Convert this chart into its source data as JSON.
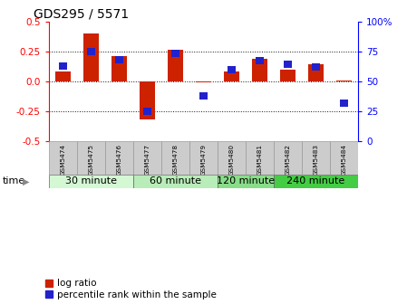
{
  "title": "GDS295 / 5571",
  "samples": [
    "GSM5474",
    "GSM5475",
    "GSM5476",
    "GSM5477",
    "GSM5478",
    "GSM5479",
    "GSM5480",
    "GSM5481",
    "GSM5482",
    "GSM5483",
    "GSM5484"
  ],
  "log_ratio": [
    0.08,
    0.4,
    0.21,
    -0.32,
    0.26,
    -0.01,
    0.08,
    0.19,
    0.1,
    0.14,
    0.01
  ],
  "percentile_rank": [
    63,
    75,
    68,
    25,
    73,
    38,
    60,
    67,
    64,
    62,
    32
  ],
  "ylim": [
    -0.5,
    0.5
  ],
  "yticks_left": [
    -0.5,
    -0.25,
    0.0,
    0.25,
    0.5
  ],
  "yticks_right_vals": [
    -0.5,
    -0.25,
    0.0,
    0.25,
    0.5
  ],
  "yticks_right_labels": [
    "0",
    "25",
    "50",
    "75",
    "100%"
  ],
  "groups": [
    {
      "label": "30 minute",
      "samples": [
        "GSM5474",
        "GSM5475",
        "GSM5476"
      ],
      "color": "#d4f7d4"
    },
    {
      "label": "60 minute",
      "samples": [
        "GSM5477",
        "GSM5478",
        "GSM5479"
      ],
      "color": "#b8ecb8"
    },
    {
      "label": "120 minute",
      "samples": [
        "GSM5480",
        "GSM5481"
      ],
      "color": "#88dd88"
    },
    {
      "label": "240 minute",
      "samples": [
        "GSM5482",
        "GSM5483",
        "GSM5484"
      ],
      "color": "#44cc44"
    }
  ],
  "bar_color_red": "#cc2200",
  "bar_color_blue": "#2222cc",
  "bar_width": 0.55,
  "blue_sq_size": 0.06,
  "background_color": "#ffffff",
  "dotted_color": "#111111",
  "sample_bg": "#cccccc",
  "title_fontsize": 10,
  "tick_fontsize": 7.5,
  "legend_fontsize": 7.5,
  "group_label_fontsize": 8,
  "time_fontsize": 8
}
